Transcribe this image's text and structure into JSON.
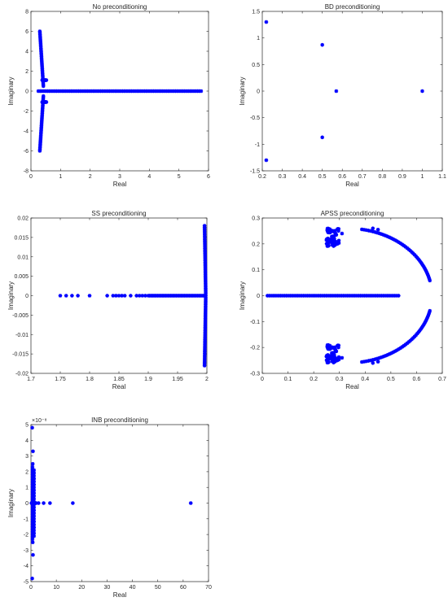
{
  "colors": {
    "marker": "#0000ff",
    "axis": "#262626",
    "background": "#ffffff"
  },
  "chart_data": [
    {
      "type": "scatter",
      "title": "No preconditioning",
      "xlabel": "Real",
      "ylabel": "Imaginary",
      "xlim": [
        0,
        6
      ],
      "ylim": [
        -8,
        8
      ],
      "xticks": [
        0,
        1,
        2,
        3,
        4,
        5,
        6
      ],
      "yticks": [
        -8,
        -6,
        -4,
        -2,
        0,
        2,
        4,
        6,
        8
      ],
      "tick_labels_x": [
        "0",
        "1",
        "2",
        "3",
        "4",
        "5",
        "6"
      ],
      "tick_labels_y": [
        "-8",
        "-6",
        "-4",
        "-2",
        "0",
        "2",
        "4",
        "6",
        "8"
      ],
      "series": [
        {
          "marker": "*",
          "clusters": [
            {
              "kind": "line",
              "x": [
                0.25,
                5.75
              ],
              "y": [
                0,
                0
              ],
              "n": 90
            },
            {
              "kind": "line",
              "x": [
                0.3,
                0.42
              ],
              "y": [
                6.0,
                0.5
              ],
              "n": 36
            },
            {
              "kind": "line",
              "x": [
                0.3,
                0.42
              ],
              "y": [
                -6.0,
                -0.5
              ],
              "n": 36
            },
            {
              "kind": "line",
              "x": [
                0.38,
                0.52
              ],
              "y": [
                1.1,
                1.1
              ],
              "n": 10
            },
            {
              "kind": "line",
              "x": [
                0.38,
                0.52
              ],
              "y": [
                -1.1,
                -1.1
              ],
              "n": 10
            }
          ]
        }
      ]
    },
    {
      "type": "scatter",
      "title": "BD preconditioning",
      "xlabel": "Real",
      "ylabel": "Imaginary",
      "xlim": [
        0.2,
        1.1
      ],
      "ylim": [
        -1.5,
        1.5
      ],
      "xticks": [
        0.2,
        0.3,
        0.4,
        0.5,
        0.6,
        0.7,
        0.8,
        0.9,
        1,
        1.1
      ],
      "yticks": [
        -1.5,
        -1,
        -0.5,
        0,
        0.5,
        1,
        1.5
      ],
      "tick_labels_x": [
        "0.2",
        "0.3",
        "0.4",
        "0.5",
        "0.6",
        "0.7",
        "0.8",
        "0.9",
        "1",
        "1.1"
      ],
      "tick_labels_y": [
        "-1.5",
        "-1",
        "-0.5",
        "0",
        "0.5",
        "1",
        "1.5"
      ],
      "series": [
        {
          "marker": "*",
          "points": [
            [
              0.22,
              1.3
            ],
            [
              0.22,
              -1.3
            ],
            [
              0.5,
              0.87
            ],
            [
              0.5,
              -0.87
            ],
            [
              0.57,
              0.0
            ],
            [
              1.0,
              0.0
            ]
          ]
        }
      ]
    },
    {
      "type": "scatter",
      "title": "SS preconditioning",
      "xlabel": "Real",
      "ylabel": "Imaginary",
      "xlim": [
        1.7,
        2.0
      ],
      "ylim": [
        -0.02,
        0.02
      ],
      "xticks": [
        1.7,
        1.75,
        1.8,
        1.85,
        1.9,
        1.95,
        2.0
      ],
      "yticks": [
        -0.02,
        -0.015,
        -0.01,
        -0.005,
        0,
        0.005,
        0.01,
        0.015,
        0.02
      ],
      "tick_labels_x": [
        "1.7",
        "1.75",
        "1.8",
        "1.85",
        "1.9",
        "1.95",
        "2"
      ],
      "tick_labels_y": [
        "-0.02",
        "-0.015",
        "-0.01",
        "-0.005",
        "0",
        "0.005",
        "0.01",
        "0.015",
        "0.02"
      ],
      "series": [
        {
          "marker": "*",
          "points": [
            [
              1.75,
              0
            ],
            [
              1.76,
              0
            ],
            [
              1.77,
              0
            ],
            [
              1.78,
              0
            ],
            [
              1.8,
              0
            ],
            [
              1.83,
              0
            ],
            [
              1.84,
              0
            ],
            [
              1.845,
              0
            ],
            [
              1.85,
              0
            ],
            [
              1.855,
              0
            ],
            [
              1.86,
              0
            ],
            [
              1.87,
              0
            ],
            [
              1.88,
              0
            ],
            [
              1.885,
              0
            ],
            [
              1.89,
              0
            ],
            [
              1.895,
              0
            ]
          ],
          "clusters": [
            {
              "kind": "line",
              "x": [
                1.9,
                1.998
              ],
              "y": [
                0,
                0
              ],
              "n": 50
            },
            {
              "kind": "line",
              "x": [
                1.996,
                1.998
              ],
              "y": [
                0.018,
                0.0005
              ],
              "n": 40
            },
            {
              "kind": "line",
              "x": [
                1.996,
                1.998
              ],
              "y": [
                -0.018,
                -0.0005
              ],
              "n": 40
            }
          ]
        }
      ]
    },
    {
      "type": "scatter",
      "title": "APSS preconditioning",
      "xlabel": "Real",
      "ylabel": "Imaginary",
      "xlim": [
        0,
        0.7
      ],
      "ylim": [
        -0.3,
        0.3
      ],
      "xticks": [
        0,
        0.1,
        0.2,
        0.3,
        0.4,
        0.5,
        0.6,
        0.7
      ],
      "yticks": [
        -0.3,
        -0.2,
        -0.1,
        0,
        0.1,
        0.2,
        0.3
      ],
      "tick_labels_x": [
        "0",
        "0.1",
        "0.2",
        "0.3",
        "0.4",
        "0.5",
        "0.6",
        "0.7"
      ],
      "tick_labels_y": [
        "-0.3",
        "-0.2",
        "-0.1",
        "0",
        "0.1",
        "0.2",
        "0.3"
      ],
      "series": [
        {
          "marker": "*",
          "points": [
            [
              0.31,
              0.24
            ],
            [
              0.31,
              -0.24
            ],
            [
              0.43,
              0.26
            ],
            [
              0.45,
              0.255
            ],
            [
              0.43,
              -0.26
            ],
            [
              0.45,
              -0.255
            ]
          ],
          "clusters": [
            {
              "kind": "line",
              "x": [
                0.02,
                0.53
              ],
              "y": [
                0,
                0
              ],
              "n": 70
            },
            {
              "kind": "blob",
              "x": [
                0.24,
                0.3
              ],
              "y": [
                0.19,
                0.26
              ],
              "n": 60
            },
            {
              "kind": "blob",
              "x": [
                0.24,
                0.3
              ],
              "y": [
                -0.26,
                -0.19
              ],
              "n": 60
            },
            {
              "kind": "arc",
              "cx": 0.33,
              "cy": 0,
              "rx": 0.33,
              "ry": 0.26,
              "a0": 80,
              "a1": 13,
              "n": 45
            },
            {
              "kind": "arc",
              "cx": 0.33,
              "cy": 0,
              "rx": 0.33,
              "ry": 0.26,
              "a0": -80,
              "a1": -13,
              "n": 45
            }
          ]
        }
      ]
    },
    {
      "type": "scatter",
      "title": "INB preconditioning",
      "xlabel": "Real",
      "ylabel": "Imaginary",
      "exponent_label": "×10⁻⁸",
      "xlim": [
        0,
        70
      ],
      "ylim": [
        -5,
        5
      ],
      "xticks": [
        0,
        10,
        20,
        30,
        40,
        50,
        60,
        70
      ],
      "yticks": [
        -5,
        -4,
        -3,
        -2,
        -1,
        0,
        1,
        2,
        3,
        4,
        5
      ],
      "tick_labels_x": [
        "0",
        "10",
        "20",
        "30",
        "40",
        "50",
        "60",
        "70"
      ],
      "tick_labels_y": [
        "-5",
        "-4",
        "-3",
        "-2",
        "-1",
        "0",
        "1",
        "2",
        "3",
        "4",
        "5"
      ],
      "series": [
        {
          "marker": "*",
          "points": [
            [
              0.5,
              4.8
            ],
            [
              0.5,
              -4.8
            ],
            [
              0.8,
              3.3
            ],
            [
              0.8,
              -3.3
            ],
            [
              0.7,
              2.5
            ],
            [
              0.7,
              -2.5
            ],
            [
              3.0,
              0
            ],
            [
              5.0,
              0
            ],
            [
              7.5,
              0
            ],
            [
              16.5,
              0
            ],
            [
              63.0,
              0
            ]
          ],
          "clusters": [
            {
              "kind": "line",
              "x": [
                0.6,
                0.6
              ],
              "y": [
                -2.3,
                2.3
              ],
              "n": 30
            },
            {
              "kind": "line",
              "x": [
                1.2,
                1.2
              ],
              "y": [
                -2.1,
                2.1
              ],
              "n": 24
            },
            {
              "kind": "line",
              "x": [
                0.2,
                2.0
              ],
              "y": [
                0,
                0
              ],
              "n": 8
            }
          ]
        }
      ]
    }
  ]
}
